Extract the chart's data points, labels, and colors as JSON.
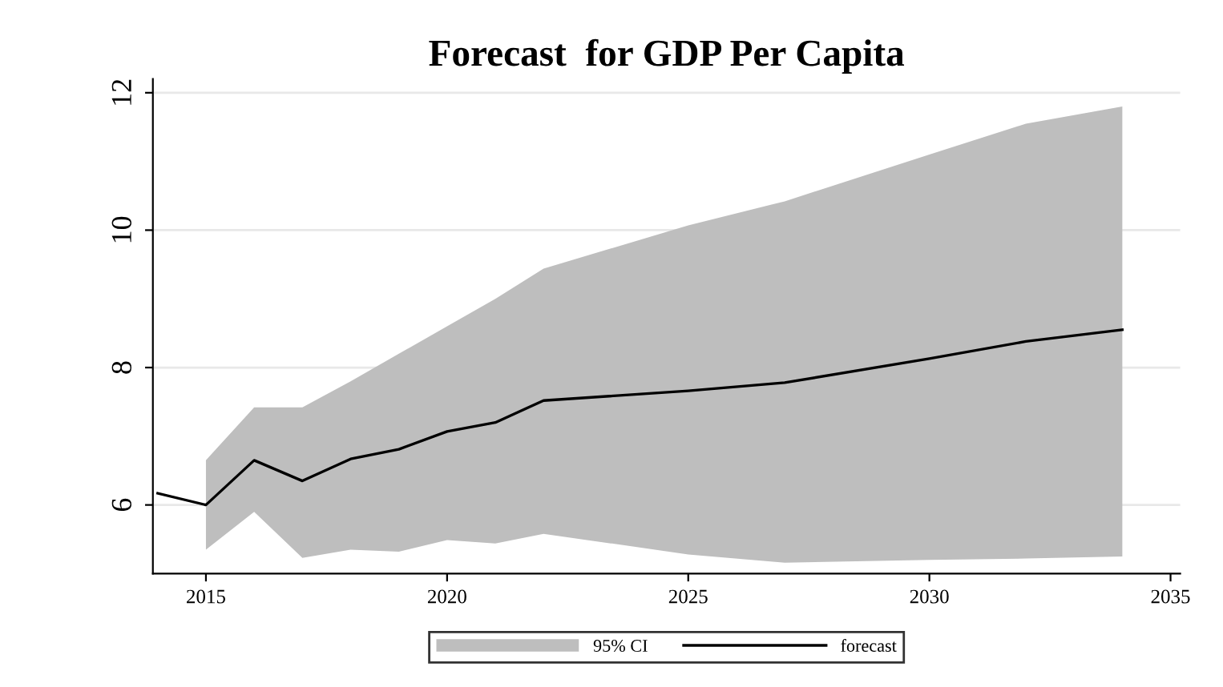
{
  "chart_data": {
    "type": "line",
    "title": "Forecast  for GDP Per Capita",
    "x": [
      2014,
      2015,
      2016,
      2017,
      2018,
      2019,
      2020,
      2021,
      2022,
      2025,
      2027,
      2030,
      2032,
      2034
    ],
    "series": [
      {
        "name": "forecast",
        "color": "#000000",
        "values": [
          6.17,
          6.0,
          6.65,
          6.35,
          6.67,
          6.81,
          7.07,
          7.2,
          7.52,
          7.66,
          7.78,
          8.13,
          8.38,
          8.55
        ],
        "upper": [
          null,
          6.65,
          7.42,
          7.42,
          7.8,
          8.2,
          8.6,
          9.0,
          9.44,
          10.07,
          10.42,
          11.1,
          11.55,
          11.8
        ],
        "lower": [
          null,
          5.35,
          5.9,
          5.23,
          5.35,
          5.32,
          5.49,
          5.44,
          5.58,
          5.28,
          5.16,
          5.2,
          5.22,
          5.25
        ]
      }
    ],
    "annotations": [
      "95% CI"
    ],
    "xlim": [
      2013.9,
      2035.2
    ],
    "ylim": [
      5.0,
      12.2
    ],
    "xticks": [
      2015,
      2020,
      2025,
      2030,
      2035
    ],
    "yticks": [
      6,
      8,
      10,
      12
    ],
    "grid": "y",
    "legend": "bottom",
    "marker": "none",
    "line_style": "solid"
  }
}
